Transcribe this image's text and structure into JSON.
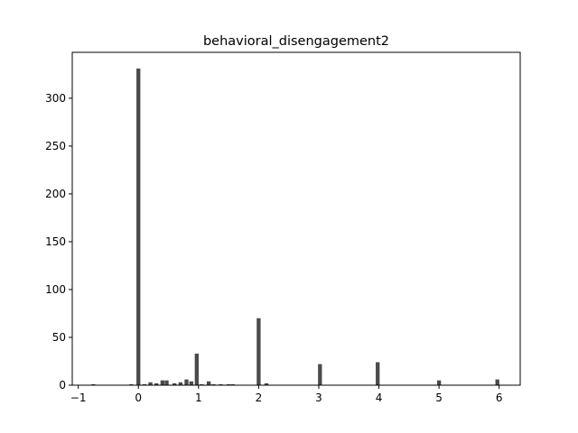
{
  "chart_data": {
    "type": "bar",
    "title": "behavioral_disengagement2",
    "xlabel": "",
    "ylabel": "",
    "xlim": [
      -1.1,
      6.35
    ],
    "ylim": [
      0,
      348
    ],
    "xticks": [
      -1,
      0,
      1,
      2,
      3,
      4,
      5,
      6
    ],
    "yticks": [
      0,
      50,
      100,
      150,
      200,
      250,
      300
    ],
    "grid": false,
    "bar_width": 0.065,
    "bar_color": "#4a4a4a",
    "bars": [
      {
        "x": -0.75,
        "value": 1
      },
      {
        "x": -0.12,
        "value": 1
      },
      {
        "x": 0.0,
        "value": 331
      },
      {
        "x": 0.1,
        "value": 1
      },
      {
        "x": 0.2,
        "value": 3
      },
      {
        "x": 0.3,
        "value": 2
      },
      {
        "x": 0.4,
        "value": 5
      },
      {
        "x": 0.47,
        "value": 5
      },
      {
        "x": 0.6,
        "value": 2
      },
      {
        "x": 0.7,
        "value": 3
      },
      {
        "x": 0.8,
        "value": 6
      },
      {
        "x": 0.88,
        "value": 4
      },
      {
        "x": 0.97,
        "value": 33
      },
      {
        "x": 1.05,
        "value": 1
      },
      {
        "x": 1.17,
        "value": 4
      },
      {
        "x": 1.25,
        "value": 1
      },
      {
        "x": 1.37,
        "value": 1
      },
      {
        "x": 1.5,
        "value": 1
      },
      {
        "x": 1.57,
        "value": 1
      },
      {
        "x": 2.0,
        "value": 70
      },
      {
        "x": 2.13,
        "value": 2
      },
      {
        "x": 3.02,
        "value": 22
      },
      {
        "x": 3.98,
        "value": 24
      },
      {
        "x": 5.0,
        "value": 5
      },
      {
        "x": 5.97,
        "value": 6
      }
    ]
  }
}
